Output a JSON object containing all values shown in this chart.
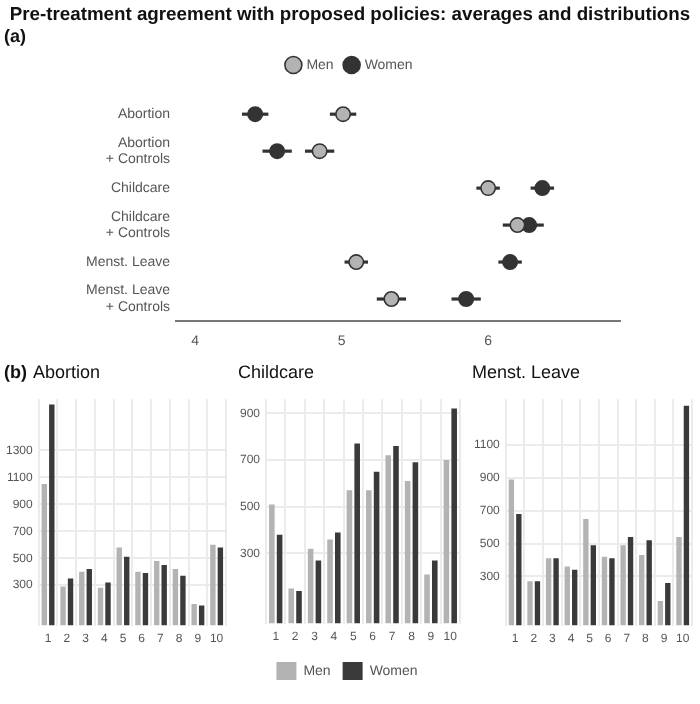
{
  "chart_data": [
    {
      "type": "scatter",
      "orientation": "horizontal",
      "title": "Pre-treatment agreement with proposed policies: averages and distributions",
      "annotations": [
        "(a)"
      ],
      "categories": [
        "Abortion",
        "Abortion\n+ Controls",
        "Childcare",
        "Childcare\n+ Controls",
        "Menst. Leave",
        "Menst. Leave\n+ Controls"
      ],
      "xlim": [
        3.87,
        6.9
      ],
      "xticks": [
        4,
        5,
        6
      ],
      "legend": "top",
      "marker": "circle",
      "grid": false,
      "series": [
        {
          "name": "Men",
          "color": "#b3b3b3",
          "values": [
            5.01,
            4.85,
            6.0,
            6.2,
            5.1,
            5.34
          ],
          "errors": [
            0.09,
            0.1,
            0.08,
            0.1,
            0.08,
            0.1
          ]
        },
        {
          "name": "Women",
          "color": "#333333",
          "values": [
            4.41,
            4.56,
            6.37,
            6.28,
            6.15,
            5.85
          ],
          "errors": [
            0.09,
            0.1,
            0.08,
            0.1,
            0.08,
            0.1
          ]
        }
      ]
    },
    {
      "type": "bar",
      "title": "Abortion",
      "annotations": [
        "(b)"
      ],
      "categories": [
        "1",
        "2",
        "3",
        "4",
        "5",
        "6",
        "7",
        "8",
        "9",
        "10"
      ],
      "ylim": [
        0,
        1680
      ],
      "yticks": [
        300,
        500,
        700,
        900,
        1100,
        1300
      ],
      "grid": true,
      "legend": false,
      "series": [
        {
          "color": "#b3b3b3",
          "values": [
            1050,
            290,
            400,
            280,
            580,
            400,
            480,
            420,
            160,
            600
          ]
        },
        {
          "color": "#3a3a3a",
          "values": [
            1640,
            350,
            420,
            320,
            510,
            390,
            450,
            370,
            150,
            580
          ]
        }
      ]
    },
    {
      "type": "bar",
      "title": "Childcare",
      "categories": [
        "1",
        "2",
        "3",
        "4",
        "5",
        "6",
        "7",
        "8",
        "9",
        "10"
      ],
      "ylim": [
        0,
        960
      ],
      "yticks": [
        300,
        500,
        700,
        900
      ],
      "grid": true,
      "legend": "bottom",
      "series": [
        {
          "name": "Men",
          "color": "#b3b3b3",
          "values": [
            510,
            150,
            320,
            360,
            570,
            570,
            720,
            610,
            210,
            700
          ]
        },
        {
          "name": "Women",
          "color": "#3a3a3a",
          "values": [
            380,
            140,
            270,
            390,
            770,
            650,
            760,
            690,
            270,
            920
          ]
        }
      ]
    },
    {
      "type": "bar",
      "title": "Menst. Leave",
      "categories": [
        "1",
        "2",
        "3",
        "4",
        "5",
        "6",
        "7",
        "8",
        "9",
        "10"
      ],
      "ylim": [
        0,
        1380
      ],
      "yticks": [
        300,
        500,
        700,
        900,
        1100
      ],
      "grid": true,
      "legend": false,
      "series": [
        {
          "color": "#b3b3b3",
          "values": [
            890,
            270,
            410,
            360,
            650,
            420,
            490,
            430,
            150,
            540
          ]
        },
        {
          "color": "#3a3a3a",
          "values": [
            680,
            270,
            410,
            340,
            490,
            410,
            540,
            520,
            260,
            1340
          ]
        }
      ]
    }
  ]
}
